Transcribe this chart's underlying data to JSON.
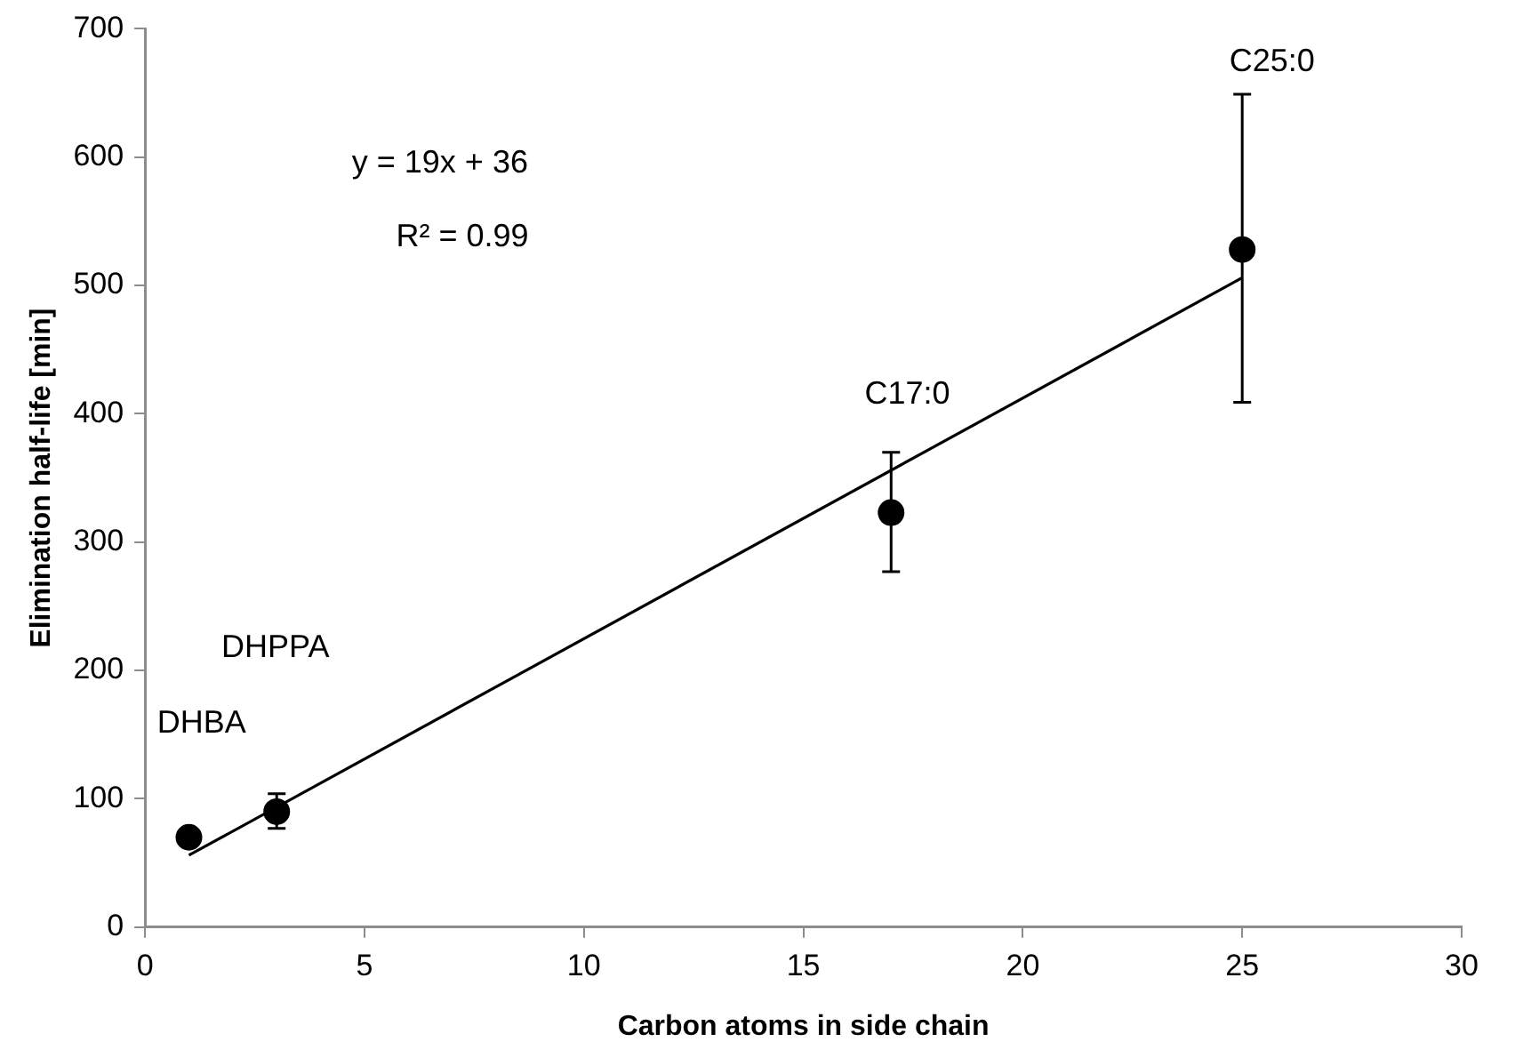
{
  "chart_data": {
    "type": "scatter",
    "xlabel": "Carbon atoms in side chain",
    "ylabel": "Elimination half-life [min]",
    "xlim": [
      0,
      30
    ],
    "xticks": [
      0,
      5,
      10,
      15,
      20,
      25,
      30
    ],
    "ylim": [
      0,
      700
    ],
    "yticks": [
      0,
      100,
      200,
      300,
      400,
      500,
      600,
      700
    ],
    "grid": false,
    "legend": false,
    "series": [
      {
        "marker": "circle",
        "color": "#000000",
        "x": [
          1,
          3,
          17,
          25
        ],
        "values": [
          70,
          90,
          323,
          528
        ],
        "errors": [
          null,
          [
            77,
            104
          ],
          [
            277,
            370
          ],
          [
            409,
            649
          ]
        ]
      },
      {
        "type": "line",
        "color": "#000000",
        "x": [
          1,
          25
        ],
        "values": [
          56,
          506
        ],
        "line_style": "solid"
      }
    ],
    "annotations": [
      "y = 19x + 36",
      "R² = 0.99",
      "DHBA",
      "DHPPA",
      "C17:0",
      "C25:0"
    ]
  }
}
